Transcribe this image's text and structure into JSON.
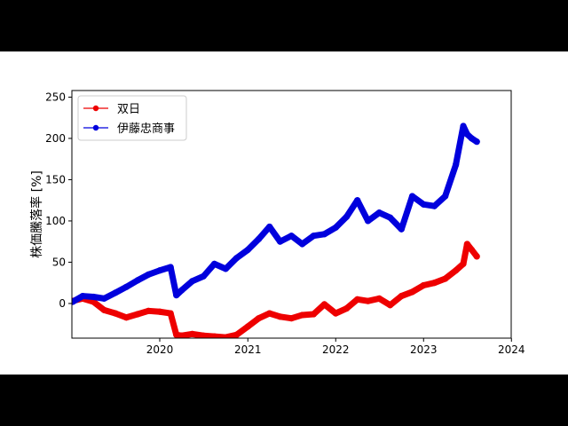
{
  "chart_data": {
    "type": "line",
    "title": "",
    "xlabel": "",
    "ylabel": "株価騰落率 [%]",
    "xlim": [
      "2019-01-01",
      "2023-12-31"
    ],
    "ylim": [
      -42,
      258
    ],
    "x_ticks": [
      "2020",
      "2021",
      "2022",
      "2023",
      "2024"
    ],
    "y_ticks": [
      0,
      50,
      100,
      150,
      200,
      250
    ],
    "grid": false,
    "legend_position": "top-left",
    "series": [
      {
        "name": "双日",
        "color": "#ee0000",
        "marker": "circle",
        "x": [
          "2019-01-04",
          "2019-02-15",
          "2019-04-01",
          "2019-05-15",
          "2019-07-01",
          "2019-08-15",
          "2019-10-01",
          "2019-11-15",
          "2020-01-01",
          "2020-02-15",
          "2020-03-10",
          "2020-04-01",
          "2020-05-15",
          "2020-07-01",
          "2020-08-15",
          "2020-10-01",
          "2020-11-15",
          "2021-01-01",
          "2021-02-15",
          "2021-04-01",
          "2021-05-15",
          "2021-07-01",
          "2021-08-15",
          "2021-10-01",
          "2021-11-15",
          "2022-01-01",
          "2022-02-15",
          "2022-04-01",
          "2022-05-15",
          "2022-07-01",
          "2022-08-15",
          "2022-10-01",
          "2022-11-15",
          "2023-01-01",
          "2023-02-15",
          "2023-04-01",
          "2023-05-15",
          "2023-06-15",
          "2023-07-01",
          "2023-07-20",
          "2023-08-10"
        ],
        "values": [
          3,
          6,
          2,
          -8,
          -12,
          -17,
          -13,
          -9,
          -10,
          -12,
          -38,
          -39,
          -37,
          -39,
          -40,
          -41,
          -38,
          -28,
          -18,
          -12,
          -16,
          -18,
          -14,
          -13,
          -1,
          -12,
          -6,
          5,
          3,
          6,
          -2,
          9,
          14,
          22,
          25,
          30,
          40,
          48,
          72,
          65,
          57
        ]
      },
      {
        "name": "伊藤忠商事",
        "color": "#0000dd",
        "marker": "circle",
        "x": [
          "2019-01-04",
          "2019-02-15",
          "2019-04-01",
          "2019-05-15",
          "2019-07-01",
          "2019-08-15",
          "2019-10-01",
          "2019-11-15",
          "2020-01-01",
          "2020-02-15",
          "2020-03-10",
          "2020-04-01",
          "2020-05-15",
          "2020-07-01",
          "2020-08-15",
          "2020-10-01",
          "2020-11-15",
          "2021-01-01",
          "2021-02-15",
          "2021-04-01",
          "2021-05-15",
          "2021-07-01",
          "2021-08-15",
          "2021-10-01",
          "2021-11-15",
          "2022-01-01",
          "2022-02-15",
          "2022-04-01",
          "2022-05-15",
          "2022-07-01",
          "2022-08-15",
          "2022-10-01",
          "2022-11-15",
          "2023-01-01",
          "2023-02-15",
          "2023-04-01",
          "2023-05-15",
          "2023-06-15",
          "2023-07-01",
          "2023-07-20",
          "2023-08-10"
        ],
        "values": [
          2,
          9,
          8,
          6,
          13,
          20,
          28,
          35,
          40,
          44,
          10,
          16,
          27,
          33,
          48,
          42,
          55,
          65,
          78,
          93,
          75,
          82,
          72,
          82,
          84,
          92,
          105,
          125,
          100,
          110,
          104,
          90,
          130,
          120,
          118,
          130,
          168,
          215,
          205,
          200,
          196
        ]
      }
    ]
  }
}
